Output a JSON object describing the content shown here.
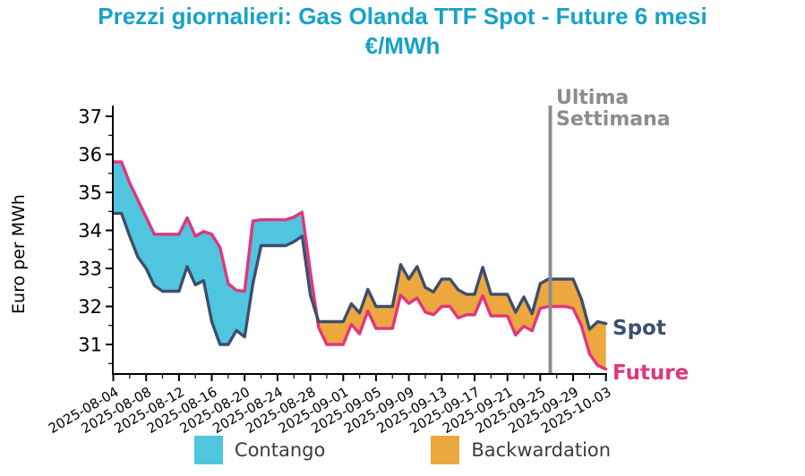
{
  "title": {
    "line1": "Prezzi giornalieri: Gas Olanda TTF Spot - Future 6 mesi",
    "line2": "€/MWh",
    "color": "#16a2c8"
  },
  "chart_data": {
    "type": "area",
    "title": "Prezzi giornalieri: Gas Olanda TTF Spot - Future 6 mesi €/MWh",
    "xlabel": "",
    "ylabel": "Euro per MWh",
    "ylim": [
      30.2,
      37.3
    ],
    "yticks": [
      31,
      32,
      33,
      34,
      35,
      36,
      37
    ],
    "grid": false,
    "legend_position": "bottom",
    "x_tick_labels": [
      "2025-08-04",
      "2025-08-08",
      "2025-08-12",
      "2025-08-16",
      "2025-08-20",
      "2025-08-24",
      "2025-08-28",
      "2025-09-01",
      "2025-09-05",
      "2025-09-09",
      "2025-09-13",
      "2025-09-17",
      "2025-09-21",
      "2025-09-25",
      "2025-09-29",
      "2025-10-03"
    ],
    "dates": [
      "2025-08-04",
      "2025-08-05",
      "2025-08-06",
      "2025-08-07",
      "2025-08-08",
      "2025-08-09",
      "2025-08-10",
      "2025-08-11",
      "2025-08-12",
      "2025-08-13",
      "2025-08-14",
      "2025-08-15",
      "2025-08-16",
      "2025-08-17",
      "2025-08-18",
      "2025-08-19",
      "2025-08-20",
      "2025-08-21",
      "2025-08-22",
      "2025-08-23",
      "2025-08-24",
      "2025-08-25",
      "2025-08-26",
      "2025-08-27",
      "2025-08-28",
      "2025-08-29",
      "2025-08-30",
      "2025-08-31",
      "2025-09-01",
      "2025-09-02",
      "2025-09-03",
      "2025-09-04",
      "2025-09-05",
      "2025-09-06",
      "2025-09-07",
      "2025-09-08",
      "2025-09-09",
      "2025-09-10",
      "2025-09-11",
      "2025-09-12",
      "2025-09-13",
      "2025-09-14",
      "2025-09-15",
      "2025-09-16",
      "2025-09-17",
      "2025-09-18",
      "2025-09-19",
      "2025-09-20",
      "2025-09-21",
      "2025-09-22",
      "2025-09-23",
      "2025-09-24",
      "2025-09-25",
      "2025-09-26",
      "2025-09-27",
      "2025-09-28",
      "2025-09-29",
      "2025-09-30",
      "2025-10-01",
      "2025-10-02",
      "2025-10-03"
    ],
    "series": [
      {
        "name": "Spot",
        "color": "#3d4e6d",
        "values": [
          34.45,
          34.45,
          33.85,
          33.3,
          33.0,
          32.55,
          32.4,
          32.4,
          32.4,
          33.05,
          32.57,
          32.68,
          31.6,
          31.0,
          31.0,
          31.37,
          31.2,
          32.6,
          33.6,
          33.6,
          33.6,
          33.6,
          33.7,
          33.85,
          32.3,
          31.6,
          31.6,
          31.6,
          31.6,
          32.07,
          31.83,
          32.45,
          32.0,
          32.0,
          32.0,
          33.1,
          32.72,
          33.05,
          32.5,
          32.38,
          32.72,
          32.72,
          32.44,
          32.32,
          32.32,
          33.03,
          32.32,
          32.32,
          32.32,
          31.85,
          32.25,
          31.81,
          32.6,
          32.72,
          32.72,
          32.72,
          32.72,
          32.2,
          31.4,
          31.6,
          31.55
        ]
      },
      {
        "name": "Future",
        "color": "#e2357d",
        "values": [
          35.8,
          35.8,
          35.25,
          34.8,
          34.35,
          33.9,
          33.9,
          33.9,
          33.9,
          34.33,
          33.85,
          33.97,
          33.9,
          33.55,
          32.6,
          32.42,
          32.4,
          34.25,
          34.28,
          34.28,
          34.28,
          34.28,
          34.35,
          34.48,
          32.9,
          31.45,
          31.0,
          31.0,
          31.0,
          31.53,
          31.28,
          31.88,
          31.42,
          31.42,
          31.42,
          32.3,
          32.08,
          32.22,
          31.85,
          31.78,
          32.0,
          32.0,
          31.7,
          31.78,
          31.78,
          32.28,
          31.75,
          31.75,
          31.75,
          31.25,
          31.48,
          31.36,
          31.95,
          32.0,
          32.0,
          32.0,
          31.95,
          31.5,
          30.75,
          30.45,
          30.35
        ]
      }
    ],
    "fills": [
      {
        "name": "Contango",
        "condition": "future>spot",
        "color": "#4fc6de"
      },
      {
        "name": "Backwardation",
        "condition": "spot>future",
        "color": "#eca73f"
      }
    ],
    "annotation": {
      "line1": "Ultima",
      "line2": "Settimana",
      "date": "2025-09-26",
      "color": "#8c8c8c"
    },
    "end_labels": {
      "spot": "Spot",
      "future": "Future"
    }
  },
  "legend": {
    "items": [
      {
        "label": "Contango",
        "color": "#4fc6de"
      },
      {
        "label": "Backwardation",
        "color": "#eca73f"
      }
    ]
  }
}
